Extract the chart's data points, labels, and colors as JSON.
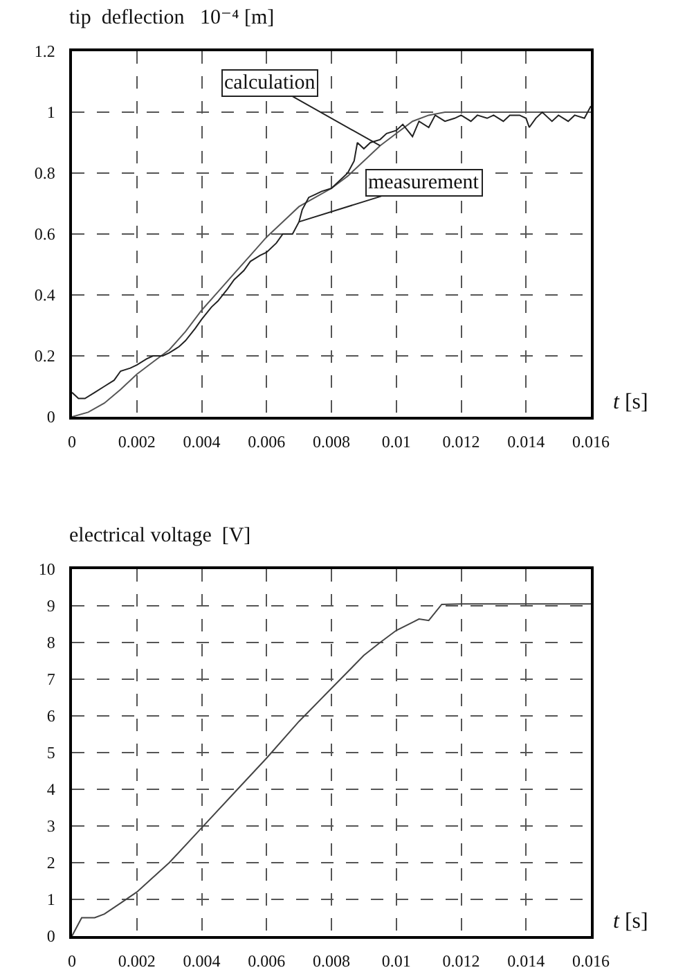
{
  "chart_data": [
    {
      "type": "line",
      "ylabel": "tip  deflection   10⁻⁴ [m]",
      "xlabel": "t [s]",
      "xlim": [
        0,
        0.016
      ],
      "xticks": [
        0,
        0.002,
        0.004,
        0.006,
        0.008,
        0.01,
        0.012,
        0.014,
        0.016
      ],
      "ylim": [
        0,
        1.2
      ],
      "yticks": [
        0,
        0.2,
        0.4,
        0.6,
        0.8,
        1,
        1.2
      ],
      "grid": true,
      "legend": false,
      "line_style": "solid",
      "marker": "none",
      "series": [
        {
          "name": "calculation",
          "color": "#555555",
          "x": [
            0,
            0.0005,
            0.001,
            0.0015,
            0.002,
            0.0025,
            0.003,
            0.0035,
            0.004,
            0.0045,
            0.005,
            0.0055,
            0.006,
            0.0065,
            0.007,
            0.0075,
            0.008,
            0.0085,
            0.009,
            0.0095,
            0.01,
            0.0105,
            0.011,
            0.0115,
            0.012,
            0.014,
            0.016
          ],
          "values": [
            0,
            0.015,
            0.045,
            0.09,
            0.14,
            0.18,
            0.22,
            0.28,
            0.35,
            0.41,
            0.47,
            0.53,
            0.59,
            0.64,
            0.69,
            0.72,
            0.75,
            0.79,
            0.84,
            0.89,
            0.93,
            0.97,
            0.99,
            1.0,
            1.0,
            1.0,
            1.0
          ]
        },
        {
          "name": "measurement",
          "color": "#222222",
          "x": [
            0,
            0.0002,
            0.0004,
            0.0007,
            0.001,
            0.0013,
            0.0015,
            0.0018,
            0.002,
            0.0023,
            0.0025,
            0.0028,
            0.003,
            0.0033,
            0.0035,
            0.0038,
            0.004,
            0.0043,
            0.0045,
            0.0048,
            0.005,
            0.0053,
            0.0055,
            0.0058,
            0.006,
            0.0063,
            0.0065,
            0.0068,
            0.007,
            0.0071,
            0.0073,
            0.0075,
            0.0077,
            0.008,
            0.0083,
            0.0085,
            0.0087,
            0.0088,
            0.009,
            0.0092,
            0.0095,
            0.0097,
            0.01,
            0.0102,
            0.0105,
            0.0107,
            0.011,
            0.0112,
            0.0115,
            0.0118,
            0.012,
            0.0123,
            0.0125,
            0.0128,
            0.013,
            0.0133,
            0.0135,
            0.0138,
            0.014,
            0.0141,
            0.0143,
            0.0145,
            0.0148,
            0.015,
            0.0153,
            0.0155,
            0.0158,
            0.016
          ],
          "values": [
            0.08,
            0.06,
            0.06,
            0.08,
            0.1,
            0.12,
            0.15,
            0.16,
            0.17,
            0.19,
            0.2,
            0.2,
            0.21,
            0.23,
            0.25,
            0.29,
            0.32,
            0.36,
            0.38,
            0.42,
            0.45,
            0.48,
            0.51,
            0.53,
            0.54,
            0.57,
            0.6,
            0.6,
            0.64,
            0.68,
            0.72,
            0.73,
            0.74,
            0.75,
            0.78,
            0.8,
            0.84,
            0.9,
            0.88,
            0.9,
            0.91,
            0.93,
            0.94,
            0.96,
            0.92,
            0.97,
            0.95,
            0.99,
            0.97,
            0.98,
            0.99,
            0.97,
            0.99,
            0.98,
            0.99,
            0.97,
            0.99,
            0.99,
            0.98,
            0.95,
            0.98,
            1.0,
            0.97,
            0.99,
            0.97,
            0.99,
            0.98,
            1.02
          ]
        }
      ]
    },
    {
      "type": "line",
      "ylabel": "electrical voltage  [V]",
      "xlabel": "t [s]",
      "xlim": [
        0,
        0.016
      ],
      "xticks": [
        0,
        0.002,
        0.004,
        0.006,
        0.008,
        0.01,
        0.012,
        0.014,
        0.016
      ],
      "ylim": [
        0,
        10
      ],
      "yticks": [
        0,
        1,
        2,
        3,
        4,
        5,
        6,
        7,
        8,
        9,
        10
      ],
      "grid": true,
      "legend": false,
      "line_style": "solid",
      "marker": "none",
      "series": [
        {
          "color": "#444444",
          "x": [
            0,
            0.0003,
            0.0007,
            0.001,
            0.0015,
            0.002,
            0.003,
            0.004,
            0.005,
            0.006,
            0.007,
            0.008,
            0.009,
            0.0095,
            0.01,
            0.0105,
            0.0107,
            0.011,
            0.0114,
            0.012,
            0.014,
            0.016
          ],
          "values": [
            0,
            0.5,
            0.5,
            0.6,
            0.9,
            1.2,
            2.0,
            2.95,
            3.9,
            4.85,
            5.85,
            6.75,
            7.65,
            8.0,
            8.33,
            8.55,
            8.64,
            8.6,
            9.04,
            9.05,
            9.05,
            9.05
          ]
        }
      ]
    }
  ]
}
